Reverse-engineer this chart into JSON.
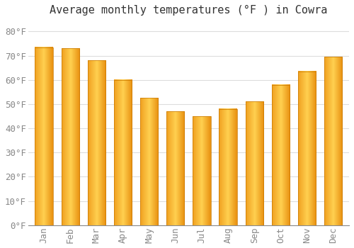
{
  "title": "Average monthly temperatures (°F ) in Cowra",
  "months": [
    "Jan",
    "Feb",
    "Mar",
    "Apr",
    "May",
    "Jun",
    "Jul",
    "Aug",
    "Sep",
    "Oct",
    "Nov",
    "Dec"
  ],
  "values": [
    73.5,
    73,
    68,
    60,
    52.5,
    47,
    45,
    48,
    51,
    58,
    63.5,
    69.5
  ],
  "bar_color_left": "#F5A623",
  "bar_color_center": "#FFD060",
  "bar_color_right": "#E89010",
  "background_color": "#FFFFFF",
  "grid_color": "#dddddd",
  "ylim": [
    0,
    85
  ],
  "yticks": [
    0,
    10,
    20,
    30,
    40,
    50,
    60,
    70,
    80
  ],
  "title_fontsize": 11,
  "tick_fontsize": 9,
  "tick_color": "#888888",
  "title_color": "#333333"
}
